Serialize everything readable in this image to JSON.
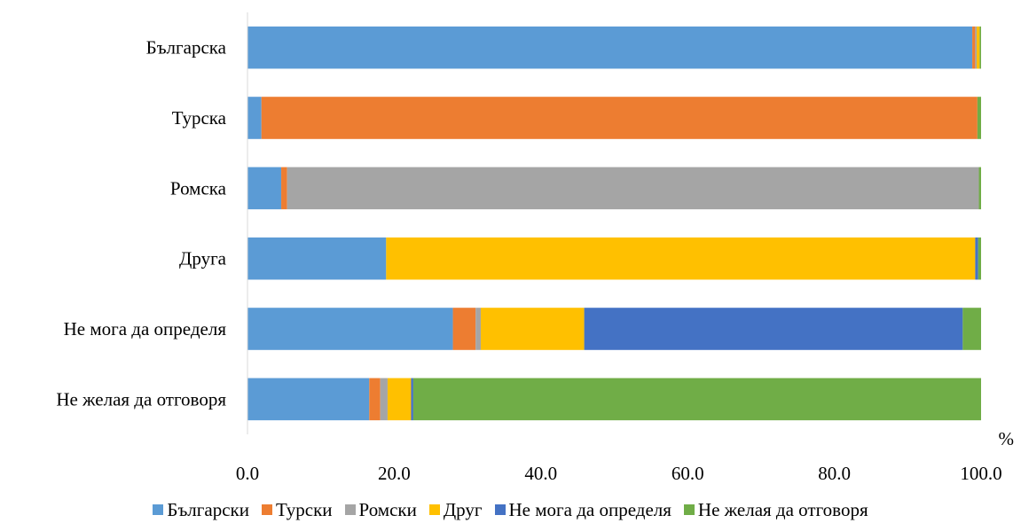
{
  "chart_data": {
    "type": "bar",
    "orientation": "horizontal",
    "stacked": true,
    "title": "",
    "xlabel": "",
    "ylabel": "",
    "x_unit": "%",
    "xlim": [
      0,
      100
    ],
    "x_ticks": [
      "0.0",
      "20.0",
      "40.0",
      "60.0",
      "80.0",
      "100.0"
    ],
    "grid": false,
    "legend_position": "bottom",
    "categories": [
      "Българска",
      "Турска",
      "Ромска",
      "Друга",
      "Не мога да определя",
      "Не желая да отговоря"
    ],
    "series": [
      {
        "name": "Български",
        "color": "#5B9BD5",
        "values": [
          98.8,
          1.9,
          4.6,
          18.9,
          28.0,
          16.6
        ]
      },
      {
        "name": "Турски",
        "color": "#ED7D31",
        "values": [
          0.4,
          97.6,
          0.8,
          0.0,
          3.1,
          1.5
        ]
      },
      {
        "name": "Ромски",
        "color": "#A5A5A5",
        "values": [
          0.2,
          0.0,
          94.3,
          0.0,
          0.7,
          1.0
        ]
      },
      {
        "name": "Друг",
        "color": "#FFC000",
        "values": [
          0.4,
          0.0,
          0.0,
          80.3,
          14.1,
          3.2
        ]
      },
      {
        "name": "Не мога да определя",
        "color": "#4472C4",
        "values": [
          0.0,
          0.0,
          0.0,
          0.4,
          51.6,
          0.3
        ]
      },
      {
        "name": "Не желая да отговоря",
        "color": "#70AD47",
        "values": [
          0.2,
          0.5,
          0.3,
          0.4,
          2.5,
          77.4
        ]
      }
    ]
  }
}
